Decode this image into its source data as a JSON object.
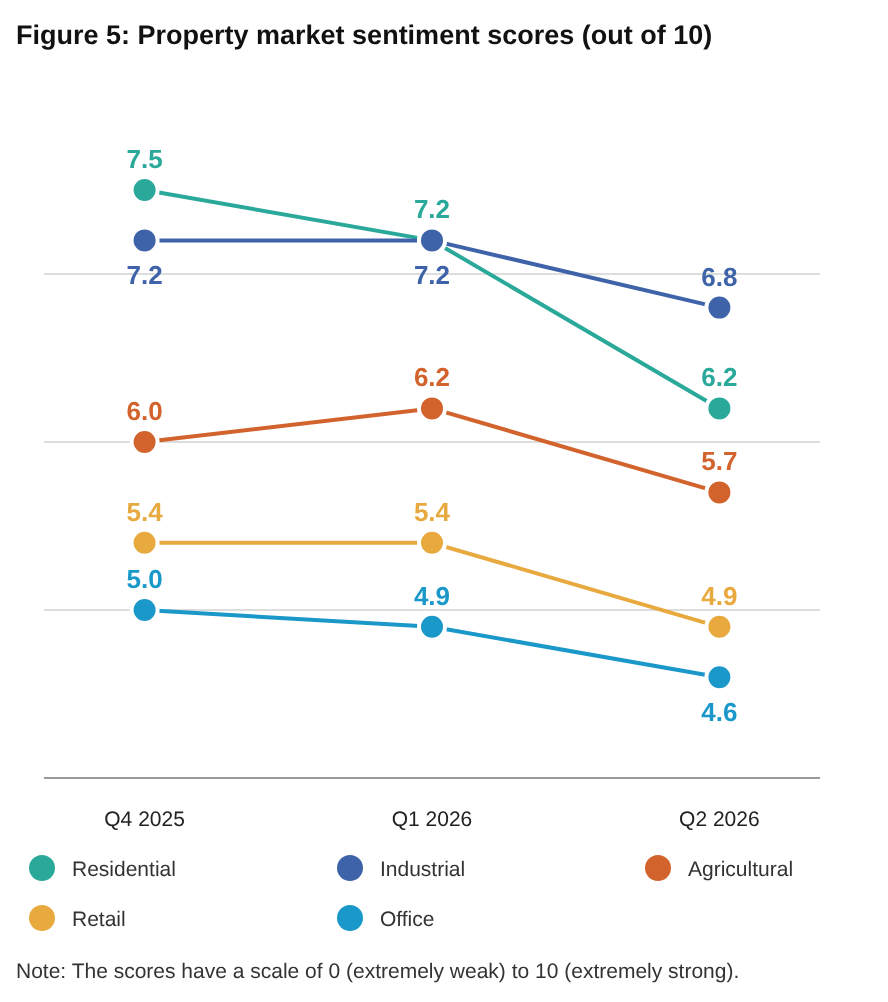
{
  "chart_data": {
    "type": "line",
    "title": "Figure 5: Property market sentiment scores (out of 10)",
    "categories": [
      "Q4 2025",
      "Q1 2026",
      "Q2 2026"
    ],
    "series": [
      {
        "name": "Residential",
        "color": "#2aa99b",
        "values": [
          7.5,
          7.2,
          6.2
        ],
        "value_labels": [
          "7.5",
          "7.2",
          "6.2"
        ]
      },
      {
        "name": "Industrial",
        "color": "#3f63a8",
        "values": [
          7.2,
          7.2,
          6.8
        ],
        "value_labels": [
          "7.2",
          "7.2",
          "6.8"
        ]
      },
      {
        "name": "Agricultural",
        "color": "#d2632d",
        "values": [
          6.0,
          6.2,
          5.7
        ],
        "value_labels": [
          "6.0",
          "6.2",
          "5.7"
        ]
      },
      {
        "name": "Retail",
        "color": "#e8a93e",
        "values": [
          5.4,
          5.4,
          4.9
        ],
        "value_labels": [
          "5.4",
          "5.4",
          "4.9"
        ]
      },
      {
        "name": "Office",
        "color": "#1a98c9",
        "values": [
          5.0,
          4.9,
          4.6
        ],
        "value_labels": [
          "5.0",
          "4.9",
          "4.6"
        ]
      }
    ],
    "yticks": [
      {
        "value": 4,
        "label": null
      },
      {
        "value": 5,
        "label": null
      },
      {
        "value": 6,
        "label": null
      },
      {
        "value": 7,
        "label": null
      }
    ],
    "tick_labels": "x",
    "grid": "y",
    "marker": "circle",
    "line_style": "solid",
    "legend": "bottom",
    "annotations": [
      "Note: The scores have a scale of 0 (extremely weak) to 10 (extremely strong)."
    ]
  }
}
